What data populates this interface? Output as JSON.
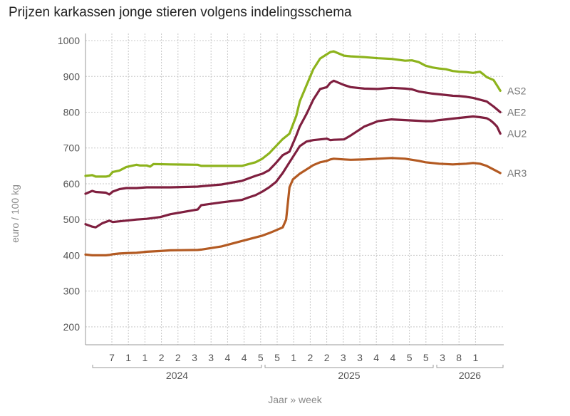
{
  "chart_data": {
    "type": "line",
    "title": "Prijzen karkassen jonge stieren volgens indelingsschema",
    "ylabel": "euro / 100 kg",
    "xlabel": "Jaar » week",
    "ylim": [
      150,
      1020
    ],
    "yticks": [
      200,
      300,
      400,
      500,
      600,
      700,
      800,
      900,
      1000
    ],
    "grid": true,
    "x_week_labels": [
      "7",
      "1",
      "1",
      "2",
      "2",
      "3",
      "3",
      "4",
      "4",
      "5",
      "5",
      "1",
      "2",
      "2",
      "3",
      "3",
      "4",
      "4",
      "5",
      "5",
      "3",
      "8",
      "1"
    ],
    "x_year_labels": [
      "2024",
      "2025",
      "2026"
    ],
    "x_min": 0,
    "x_max": 123,
    "series": [
      {
        "name": "AS2",
        "color": "#8db31c",
        "x": [
          0,
          2,
          3,
          6,
          7,
          8,
          10,
          12,
          15,
          16,
          18,
          19,
          20,
          25,
          33,
          34,
          40,
          46,
          48,
          50,
          52,
          54,
          56,
          58,
          60,
          62,
          63,
          65,
          67,
          69,
          71,
          72,
          73,
          76,
          78,
          82,
          86,
          90,
          94,
          96,
          98,
          100,
          102,
          104,
          106,
          108,
          110,
          112,
          114,
          116,
          117,
          118,
          120,
          121,
          122
        ],
        "y": [
          622,
          624,
          620,
          620,
          622,
          633,
          637,
          647,
          653,
          651,
          651,
          648,
          655,
          654,
          653,
          650,
          650,
          650,
          655,
          660,
          670,
          685,
          705,
          725,
          740,
          790,
          830,
          875,
          920,
          950,
          962,
          968,
          970,
          958,
          956,
          954,
          951,
          949,
          944,
          945,
          940,
          930,
          925,
          922,
          920,
          915,
          913,
          912,
          910,
          913,
          906,
          898,
          890,
          875,
          860
        ]
      },
      {
        "name": "AE2",
        "color": "#7f1f3f",
        "x": [
          0,
          2,
          3,
          6,
          7,
          8,
          10,
          12,
          15,
          18,
          22,
          25,
          33,
          34,
          40,
          46,
          48,
          50,
          52,
          54,
          56,
          58,
          60,
          62,
          63,
          65,
          67,
          69,
          71,
          72,
          73,
          76,
          78,
          82,
          86,
          90,
          94,
          96,
          98,
          100,
          102,
          104,
          106,
          108,
          110,
          112,
          114,
          116,
          118,
          119,
          120,
          121,
          122
        ],
        "y": [
          572,
          580,
          577,
          575,
          570,
          578,
          585,
          588,
          588,
          590,
          590,
          590,
          592,
          593,
          598,
          608,
          615,
          622,
          628,
          638,
          658,
          680,
          690,
          735,
          760,
          795,
          835,
          865,
          870,
          882,
          888,
          876,
          870,
          866,
          865,
          868,
          866,
          864,
          858,
          855,
          852,
          850,
          848,
          846,
          845,
          843,
          840,
          835,
          830,
          823,
          816,
          808,
          800
        ]
      },
      {
        "name": "AU2",
        "color": "#7f1f3f",
        "x": [
          0,
          2,
          3,
          5,
          7,
          8,
          10,
          12,
          15,
          18,
          22,
          25,
          33,
          34,
          40,
          46,
          48,
          50,
          52,
          54,
          56,
          58,
          60,
          62,
          63,
          65,
          67,
          69,
          71,
          72,
          73,
          76,
          78,
          82,
          86,
          90,
          94,
          96,
          98,
          100,
          102,
          104,
          106,
          108,
          110,
          112,
          114,
          116,
          118,
          119,
          120,
          121,
          122
        ],
        "y": [
          487,
          480,
          478,
          490,
          497,
          493,
          495,
          497,
          500,
          502,
          507,
          515,
          528,
          540,
          548,
          555,
          562,
          568,
          578,
          590,
          605,
          630,
          660,
          690,
          705,
          718,
          722,
          724,
          726,
          722,
          723,
          724,
          735,
          760,
          775,
          780,
          778,
          777,
          776,
          775,
          775,
          778,
          780,
          782,
          784,
          786,
          788,
          786,
          783,
          778,
          770,
          760,
          740
        ]
      },
      {
        "name": "AR3",
        "color": "#b35a22",
        "x": [
          0,
          2,
          3,
          6,
          7,
          8,
          10,
          12,
          15,
          18,
          22,
          25,
          33,
          34,
          40,
          46,
          48,
          50,
          52,
          54,
          56,
          58,
          59,
          60,
          61,
          62,
          63,
          65,
          67,
          69,
          71,
          72,
          73,
          76,
          78,
          82,
          86,
          90,
          94,
          96,
          98,
          100,
          102,
          104,
          106,
          108,
          110,
          112,
          114,
          116,
          118,
          120,
          122
        ],
        "y": [
          402,
          400,
          400,
          400,
          401,
          403,
          405,
          406,
          407,
          410,
          412,
          414,
          415,
          416,
          425,
          440,
          445,
          450,
          455,
          462,
          470,
          478,
          500,
          590,
          612,
          620,
          628,
          640,
          652,
          660,
          664,
          668,
          670,
          668,
          667,
          668,
          670,
          672,
          670,
          667,
          664,
          660,
          658,
          656,
          655,
          654,
          655,
          656,
          658,
          656,
          650,
          640,
          630
        ]
      }
    ]
  }
}
